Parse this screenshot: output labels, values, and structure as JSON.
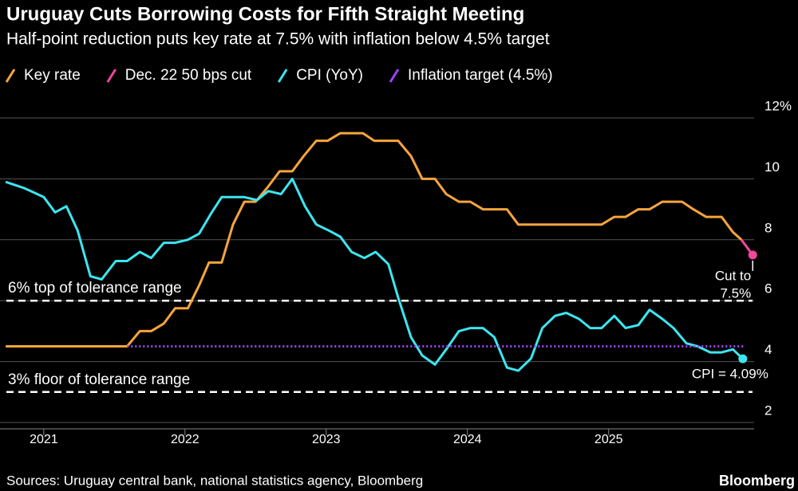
{
  "chart_data": {
    "type": "line",
    "title": "Uruguay Cuts Borrowing Costs for Fifth Straight Meeting",
    "subtitle": "Half-point reduction puts key rate at 7.5% with inflation below 4.5% target",
    "xlim": [
      2020.69,
      2026.03
    ],
    "xticks": [
      2021,
      2022,
      2023,
      2024,
      2025
    ],
    "ylim": [
      2,
      12
    ],
    "yticks": [
      2,
      4,
      6,
      8,
      10,
      {
        "value": 12,
        "label": "12%"
      }
    ],
    "grid": true,
    "series": [
      {
        "name": "Key rate",
        "color": "#f7a53b",
        "x": [
          2020.73,
          2021.59,
          2021.68,
          2021.76,
          2021.85,
          2021.93,
          2022.02,
          2022.1,
          2022.17,
          2022.26,
          2022.34,
          2022.42,
          2022.5,
          2022.59,
          2022.67,
          2022.76,
          2022.84,
          2022.93,
          2023.01,
          2023.1,
          2023.26,
          2023.34,
          2023.51,
          2023.6,
          2023.68,
          2023.77,
          2023.85,
          2023.94,
          2024.02,
          2024.11,
          2024.28,
          2024.36,
          2024.95,
          2025.04,
          2025.12,
          2025.21,
          2025.29,
          2025.38,
          2025.52,
          2025.6,
          2025.69,
          2025.8,
          2025.88,
          2025.94
        ],
        "values": [
          4.5,
          4.5,
          5.0,
          5.0,
          5.25,
          5.75,
          5.75,
          6.5,
          7.25,
          7.25,
          8.5,
          9.25,
          9.25,
          9.75,
          10.25,
          10.25,
          10.75,
          11.25,
          11.25,
          11.5,
          11.5,
          11.25,
          11.25,
          10.75,
          10.0,
          10.0,
          9.5,
          9.25,
          9.25,
          9.0,
          9.0,
          8.5,
          8.5,
          8.75,
          8.75,
          9.0,
          9.0,
          9.25,
          9.25,
          9.0,
          8.75,
          8.75,
          8.25,
          8.0
        ]
      },
      {
        "name": "Dec. 22 50 bps cut",
        "color": "#f0479b",
        "end_marker": true,
        "x": [
          2025.94,
          2026.02
        ],
        "values": [
          8.0,
          7.5
        ]
      },
      {
        "name": "CPI (YoY)",
        "color": "#3ce6f0",
        "end_marker": true,
        "x": [
          2020.73,
          2020.86,
          2021.0,
          2021.08,
          2021.16,
          2021.24,
          2021.33,
          2021.41,
          2021.51,
          2021.59,
          2021.68,
          2021.76,
          2021.85,
          2021.93,
          2022.02,
          2022.1,
          2022.19,
          2022.26,
          2022.34,
          2022.42,
          2022.51,
          2022.59,
          2022.68,
          2022.76,
          2022.85,
          2022.93,
          2023.02,
          2023.1,
          2023.18,
          2023.27,
          2023.35,
          2023.44,
          2023.51,
          2023.6,
          2023.68,
          2023.77,
          2023.85,
          2023.94,
          2024.02,
          2024.11,
          2024.19,
          2024.28,
          2024.36,
          2024.45,
          2024.53,
          2024.62,
          2024.7,
          2024.79,
          2024.87,
          2024.95,
          2025.04,
          2025.12,
          2025.21,
          2025.29,
          2025.38,
          2025.46,
          2025.55,
          2025.63,
          2025.72,
          2025.8,
          2025.88,
          2025.95
        ],
        "values": [
          9.9,
          9.7,
          9.4,
          8.9,
          9.1,
          8.3,
          6.8,
          6.7,
          7.3,
          7.3,
          7.6,
          7.4,
          7.9,
          7.9,
          8.0,
          8.2,
          8.9,
          9.4,
          9.4,
          9.4,
          9.3,
          9.6,
          9.5,
          10.0,
          9.1,
          8.5,
          8.3,
          8.1,
          7.6,
          7.4,
          7.6,
          7.2,
          6.1,
          4.8,
          4.2,
          3.9,
          4.4,
          5.0,
          5.1,
          5.1,
          4.8,
          3.8,
          3.7,
          4.1,
          5.1,
          5.5,
          5.6,
          5.4,
          5.1,
          5.1,
          5.5,
          5.1,
          5.2,
          5.7,
          5.4,
          5.1,
          4.6,
          4.5,
          4.3,
          4.3,
          4.4,
          4.09
        ]
      },
      {
        "name": "Inflation target (4.5%)",
        "color": "#9b45f5",
        "dotted": true,
        "x": [
          2021.59,
          2025.97
        ],
        "values": [
          4.5,
          4.5
        ]
      }
    ],
    "reference_lines": [
      {
        "label": "6% top of tolerance range",
        "value": 6
      },
      {
        "label": "3% floor of tolerance range",
        "value": 3
      }
    ],
    "annotations": {
      "cut": [
        "Cut to",
        "7.5%"
      ],
      "cpi": "CPI = 4.09%"
    },
    "source": "Sources: Uruguay central bank, national statistics agency, Bloomberg",
    "brand": "Bloomberg"
  }
}
